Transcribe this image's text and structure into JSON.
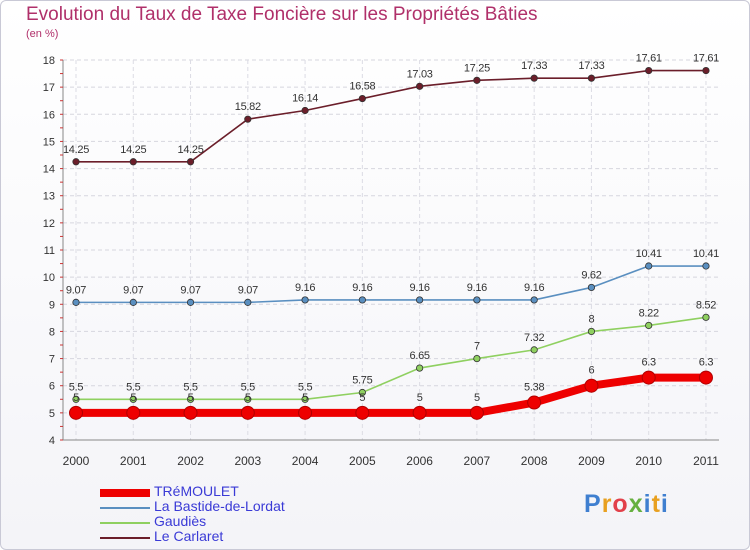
{
  "title": "Evolution du Taux de Taxe Foncière sur les Propriétés Bâties",
  "subtitle": "(en %)",
  "logo": {
    "text": "Proxiti",
    "colors": [
      "#3f7fd0",
      "#e8a020",
      "#e2404a",
      "#66b040",
      "#3f7fd0",
      "#e8a020",
      "#3f7fd0"
    ]
  },
  "chart_data": {
    "type": "line",
    "title": "Evolution du Taux de Taxe Foncière sur les Propriétés Bâties",
    "ylabel": "(en %)",
    "x": [
      "2000",
      "2001",
      "2002",
      "2003",
      "2004",
      "2005",
      "2006",
      "2007",
      "2008",
      "2009",
      "2010",
      "2011"
    ],
    "ylim": [
      4,
      18
    ],
    "yticks": [
      "4",
      "5",
      "6",
      "7",
      "8",
      "9",
      "10",
      "11",
      "12",
      "13",
      "14",
      "15",
      "16",
      "17",
      "18"
    ],
    "grid": true,
    "legend": "bottom-left",
    "series": [
      {
        "name": "Le Carlaret",
        "color": "#6b1e2a",
        "thick": false,
        "values": [
          14.25,
          14.25,
          14.25,
          15.82,
          16.14,
          16.58,
          17.03,
          17.25,
          17.33,
          17.33,
          17.61,
          17.61
        ],
        "labels": [
          "14.25",
          "14.25",
          "14.25",
          "15.82",
          "16.14",
          "16.58",
          "17.03",
          "17.25",
          "17.33",
          "17.33",
          "17.61",
          "17.61"
        ]
      },
      {
        "name": "La Bastide-de-Lordat",
        "color": "#5a8fc0",
        "thick": false,
        "values": [
          9.07,
          9.07,
          9.07,
          9.07,
          9.16,
          9.16,
          9.16,
          9.16,
          9.16,
          9.62,
          10.41,
          10.41
        ],
        "labels": [
          "9.07",
          "9.07",
          "9.07",
          "9.07",
          "9.16",
          "9.16",
          "9.16",
          "9.16",
          "9.16",
          "9.62",
          "10.41",
          "10.41"
        ]
      },
      {
        "name": "Gaudiès",
        "color": "#8fd060",
        "thick": false,
        "values": [
          5.5,
          5.5,
          5.5,
          5.5,
          5.5,
          5.75,
          6.65,
          7,
          7.32,
          8,
          8.22,
          8.52
        ],
        "labels": [
          "5.5",
          "5.5",
          "5.5",
          "5.5",
          "5.5",
          "5.75",
          "6.65",
          "7",
          "7.32",
          "8",
          "8.22",
          "8.52"
        ]
      },
      {
        "name": "TRéMOULET",
        "color": "#ee0000",
        "thick": true,
        "values": [
          5,
          5,
          5,
          5,
          5,
          5,
          5,
          5,
          5.38,
          6,
          6.3,
          6.3
        ],
        "labels": [
          "5",
          "5",
          "5",
          "5",
          "5",
          "5",
          "5",
          "5",
          "5.38",
          "6",
          "6.3",
          "6.3"
        ]
      }
    ],
    "legend_order": [
      "TRéMOULET",
      "La Bastide-de-Lordat",
      "Gaudiès",
      "Le Carlaret"
    ]
  }
}
